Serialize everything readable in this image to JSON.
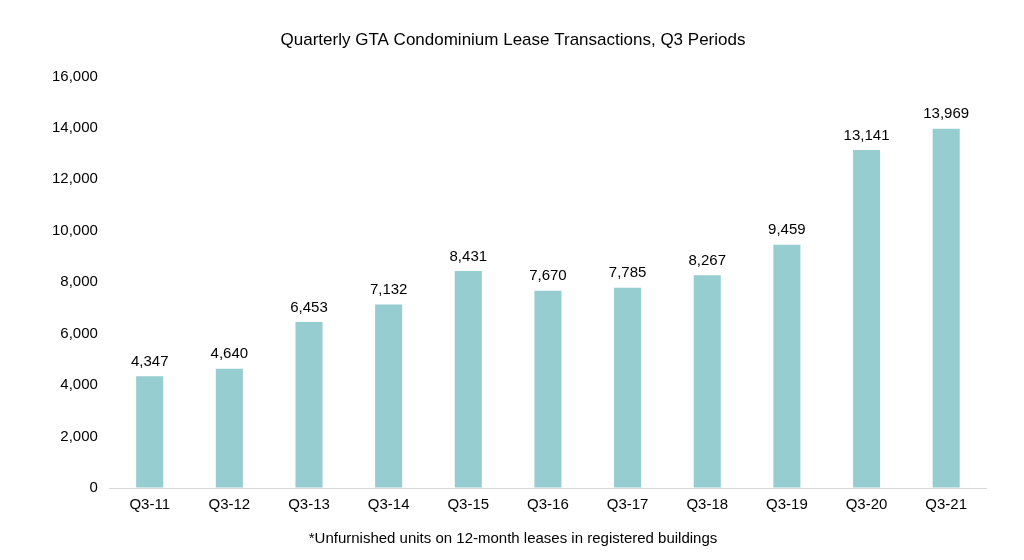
{
  "chart_data": {
    "type": "bar",
    "title": "Quarterly GTA Condominium Lease Transactions, Q3 Periods",
    "subtitle": "*Unfurnished units on 12-month leases in registered buildings",
    "categories": [
      "Q3-11",
      "Q3-12",
      "Q3-13",
      "Q3-14",
      "Q3-15",
      "Q3-16",
      "Q3-17",
      "Q3-18",
      "Q3-19",
      "Q3-20",
      "Q3-21"
    ],
    "values": [
      4347,
      4640,
      6453,
      7132,
      8431,
      7670,
      7785,
      8267,
      9459,
      13141,
      13969
    ],
    "value_labels": [
      "4,347",
      "4,640",
      "6,453",
      "7,132",
      "8,431",
      "7,670",
      "7,785",
      "8,267",
      "9,459",
      "13,141",
      "13,969"
    ],
    "data_labels": true,
    "color": "#96cdd1",
    "ylim": [
      0,
      16000
    ],
    "yticks": [
      0,
      {
        "value": 2000,
        "label": "2,000"
      },
      {
        "value": 4000,
        "label": "4,000"
      },
      {
        "value": 6000,
        "label": "6,000"
      },
      {
        "value": 8000,
        "label": "8,000"
      },
      {
        "value": 10000,
        "label": "10,000"
      },
      {
        "value": 12000,
        "label": "12,000"
      },
      {
        "value": 14000,
        "label": "14,000"
      },
      {
        "value": 16000,
        "label": "16,000"
      }
    ],
    "grid": false
  }
}
